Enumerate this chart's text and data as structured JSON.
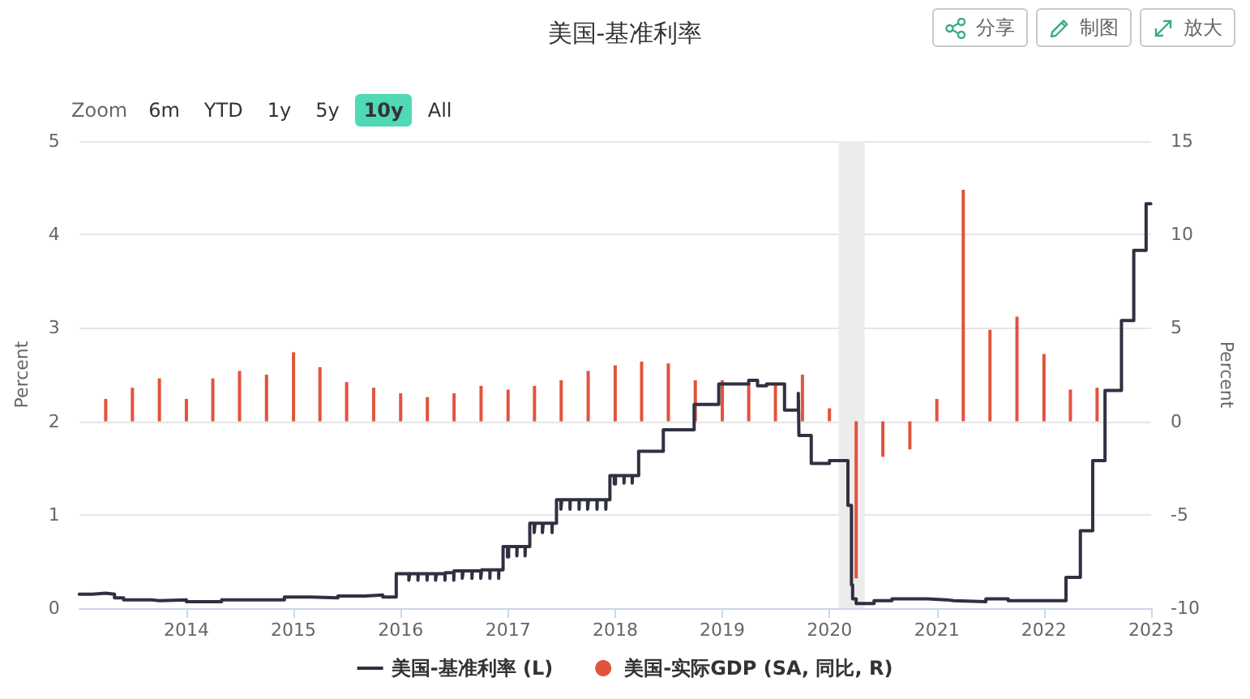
{
  "chart_data": {
    "type": "step",
    "title": "美国-基准利率",
    "ylabel": "Percent",
    "y2label": "Percent",
    "xlim": [
      "2013-01-01",
      "2023-01-01"
    ],
    "xticks": [
      "2014",
      "2015",
      "2016",
      "2017",
      "2018",
      "2019",
      "2020",
      "2021",
      "2022",
      "2023"
    ],
    "ylim": [
      0,
      5
    ],
    "yticks": [
      0,
      1,
      2,
      3,
      4,
      5
    ],
    "y2lim": [
      -10,
      15
    ],
    "y2ticks": [
      -10,
      -5,
      0,
      5,
      10,
      15
    ],
    "grid": "y",
    "legend": "bottom",
    "bands": [
      {
        "axis": "x",
        "from": "2020-02-01",
        "to": "2020-04-30",
        "color": "#ececec"
      }
    ],
    "annotations": [
      "Zoom",
      "6m",
      "YTD",
      "1y",
      "5y",
      "10y",
      "All",
      "分享",
      "制图",
      "放大"
    ],
    "series": [
      {
        "name": "美国-基准利率 (L)",
        "color": "#2f3142",
        "x": [
          "2013-01-01",
          "2013-02-15",
          "2013-04-01",
          "2013-05-01",
          "2013-06-01",
          "2013-09-01",
          "2013-10-01",
          "2014-01-01",
          "2014-05-01",
          "2014-12-01",
          "2015-03-01",
          "2015-06-01",
          "2015-09-01",
          "2015-11-01",
          "2015-12-17",
          "2016-01-29",
          "2016-02-01",
          "2016-02-29",
          "2016-03-01",
          "2016-03-31",
          "2016-04-01",
          "2016-04-29",
          "2016-05-02",
          "2016-05-31",
          "2016-06-01",
          "2016-06-30",
          "2016-07-01",
          "2016-07-29",
          "2016-08-01",
          "2016-08-31",
          "2016-09-01",
          "2016-09-30",
          "2016-10-03",
          "2016-10-31",
          "2016-11-01",
          "2016-11-30",
          "2016-12-01",
          "2016-12-15",
          "2016-12-30",
          "2017-01-03",
          "2017-01-31",
          "2017-02-01",
          "2017-02-28",
          "2017-03-01",
          "2017-03-16",
          "2017-03-31",
          "2017-04-03",
          "2017-04-28",
          "2017-05-01",
          "2017-05-31",
          "2017-06-01",
          "2017-06-15",
          "2017-06-30",
          "2017-07-03",
          "2017-07-31",
          "2017-08-01",
          "2017-08-31",
          "2017-09-01",
          "2017-09-29",
          "2017-10-02",
          "2017-10-31",
          "2017-11-01",
          "2017-11-30",
          "2017-12-01",
          "2017-12-14",
          "2017-12-29",
          "2018-01-02",
          "2018-01-31",
          "2018-02-01",
          "2018-02-28",
          "2018-03-01",
          "2018-03-22",
          "2018-06-14",
          "2018-09-27",
          "2018-12-20",
          "2019-04-01",
          "2019-05-01",
          "2019-06-01",
          "2019-08-01",
          "2019-09-17",
          "2019-09-19",
          "2019-10-31",
          "2020-01-01",
          "2020-03-04",
          "2020-03-16",
          "2020-03-20",
          "2020-04-01",
          "2020-06-01",
          "2020-08-01",
          "2020-12-01",
          "2021-02-01",
          "2021-03-01",
          "2021-06-17",
          "2021-09-01",
          "2022-03-17",
          "2022-05-05",
          "2022-06-16",
          "2022-07-28",
          "2022-09-22",
          "2022-11-03",
          "2022-12-15",
          "2022-12-31"
        ],
        "values": [
          0.15,
          0.16,
          0.15,
          0.11,
          0.09,
          0.08,
          0.09,
          0.07,
          0.09,
          0.12,
          0.11,
          0.13,
          0.14,
          0.12,
          0.37,
          0.3,
          0.37,
          0.3,
          0.37,
          0.3,
          0.37,
          0.3,
          0.37,
          0.3,
          0.38,
          0.3,
          0.4,
          0.32,
          0.4,
          0.32,
          0.4,
          0.32,
          0.41,
          0.32,
          0.41,
          0.32,
          0.41,
          0.66,
          0.55,
          0.66,
          0.56,
          0.66,
          0.56,
          0.66,
          0.91,
          0.81,
          0.91,
          0.81,
          0.91,
          0.81,
          0.91,
          1.16,
          1.06,
          1.16,
          1.06,
          1.16,
          1.06,
          1.16,
          1.06,
          1.16,
          1.06,
          1.16,
          1.06,
          1.16,
          1.42,
          1.33,
          1.42,
          1.34,
          1.42,
          1.34,
          1.42,
          1.68,
          1.91,
          2.18,
          2.4,
          2.44,
          2.38,
          2.4,
          2.12,
          2.3,
          1.85,
          1.55,
          1.58,
          1.1,
          0.25,
          0.1,
          0.05,
          0.08,
          0.1,
          0.09,
          0.08,
          0.07,
          0.1,
          0.08,
          0.33,
          0.83,
          1.58,
          2.33,
          3.08,
          3.83,
          4.33,
          4.33
        ]
      },
      {
        "name": "美国-实际GDP (SA, 同比, R)",
        "type": "bar",
        "axis": "y2",
        "color": "#e2533c",
        "x": [
          "2013-04-01",
          "2013-07-01",
          "2013-10-01",
          "2014-01-01",
          "2014-04-01",
          "2014-07-01",
          "2014-10-01",
          "2015-01-01",
          "2015-04-01",
          "2015-07-01",
          "2015-10-01",
          "2016-01-01",
          "2016-04-01",
          "2016-07-01",
          "2016-10-01",
          "2017-01-01",
          "2017-04-01",
          "2017-07-01",
          "2017-10-01",
          "2018-01-01",
          "2018-04-01",
          "2018-07-01",
          "2018-10-01",
          "2019-01-01",
          "2019-04-01",
          "2019-07-01",
          "2019-10-01",
          "2020-01-01",
          "2020-04-01",
          "2020-07-01",
          "2020-10-01",
          "2021-01-01",
          "2021-04-01",
          "2021-07-01",
          "2021-10-01",
          "2022-01-01",
          "2022-04-01",
          "2022-07-01"
        ],
        "values": [
          1.2,
          1.8,
          2.3,
          1.2,
          2.3,
          2.7,
          2.5,
          3.7,
          2.9,
          2.1,
          1.8,
          1.5,
          1.3,
          1.5,
          1.9,
          1.7,
          1.9,
          2.2,
          2.7,
          3.0,
          3.2,
          3.1,
          2.2,
          2.2,
          2.0,
          2.0,
          2.5,
          0.7,
          -8.4,
          -1.9,
          -1.5,
          1.2,
          12.4,
          4.9,
          5.6,
          3.6,
          1.7,
          1.8
        ]
      }
    ]
  }
}
